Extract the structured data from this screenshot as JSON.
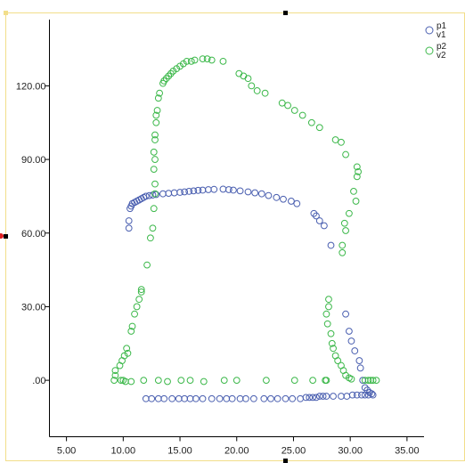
{
  "chart_data": {
    "type": "scatter",
    "title": "",
    "xlabel": "",
    "ylabel": "",
    "xlim": [
      3.5,
      36.5
    ],
    "ylim": [
      -23,
      147
    ],
    "x_ticks": [
      5,
      10,
      15,
      20,
      25,
      30,
      35
    ],
    "x_tick_labels": [
      "5.00",
      "10.00",
      "15.00",
      "20.00",
      "25.00",
      "30.00",
      "35.00"
    ],
    "y_ticks": [
      0,
      30,
      60,
      90,
      120
    ],
    "y_tick_labels": [
      ".00",
      "30.00",
      "60.00",
      "90.00",
      "120.00"
    ],
    "grid": false,
    "legend_position": "top-right",
    "marker": "open-circle",
    "series": [
      {
        "name": "p1\nv1",
        "color": "#4a5fb0",
        "points": [
          [
            10.5,
            62
          ],
          [
            10.5,
            65
          ],
          [
            10.6,
            70
          ],
          [
            10.7,
            71
          ],
          [
            10.8,
            72
          ],
          [
            11.0,
            72.5
          ],
          [
            11.2,
            73
          ],
          [
            11.4,
            73.5
          ],
          [
            11.6,
            74
          ],
          [
            11.8,
            74.5
          ],
          [
            12.0,
            75
          ],
          [
            12.3,
            75.3
          ],
          [
            12.6,
            75.5
          ],
          [
            12.9,
            75.7
          ],
          [
            13.5,
            76
          ],
          [
            14.0,
            76.2
          ],
          [
            14.5,
            76.4
          ],
          [
            15.0,
            76.6
          ],
          [
            15.4,
            76.8
          ],
          [
            15.8,
            77
          ],
          [
            16.2,
            77.2
          ],
          [
            16.6,
            77.4
          ],
          [
            17.0,
            77.5
          ],
          [
            17.5,
            77.7
          ],
          [
            18.0,
            77.8
          ],
          [
            18.8,
            77.9
          ],
          [
            19.3,
            77.7
          ],
          [
            19.7,
            77.5
          ],
          [
            20.3,
            77.2
          ],
          [
            21.0,
            76.8
          ],
          [
            21.6,
            76.4
          ],
          [
            22.2,
            76
          ],
          [
            22.8,
            75.3
          ],
          [
            23.5,
            74.5
          ],
          [
            24.1,
            73.8
          ],
          [
            24.8,
            73
          ],
          [
            25.3,
            72
          ],
          [
            26.8,
            68
          ],
          [
            27.0,
            67
          ],
          [
            27.3,
            65
          ],
          [
            27.7,
            63
          ],
          [
            28.3,
            55
          ],
          [
            29.6,
            27
          ],
          [
            29.9,
            20
          ],
          [
            30.1,
            16
          ],
          [
            30.4,
            12
          ],
          [
            30.8,
            8
          ],
          [
            30.9,
            5
          ],
          [
            31.1,
            0
          ],
          [
            31.3,
            -3
          ],
          [
            31.5,
            -4
          ],
          [
            31.7,
            -5
          ],
          [
            31.9,
            -5.5
          ],
          [
            32.0,
            -6
          ],
          [
            12.0,
            -7.5
          ],
          [
            12.5,
            -7.5
          ],
          [
            13.1,
            -7.5
          ],
          [
            13.6,
            -7.5
          ],
          [
            14.3,
            -7.5
          ],
          [
            14.9,
            -7.5
          ],
          [
            15.4,
            -7.5
          ],
          [
            15.9,
            -7.5
          ],
          [
            16.4,
            -7.5
          ],
          [
            17.0,
            -7.5
          ],
          [
            17.8,
            -7.5
          ],
          [
            18.5,
            -7.5
          ],
          [
            19.1,
            -7.5
          ],
          [
            19.6,
            -7.5
          ],
          [
            20.3,
            -7.5
          ],
          [
            20.8,
            -7.5
          ],
          [
            21.5,
            -7.5
          ],
          [
            22.4,
            -7.5
          ],
          [
            23.0,
            -7.5
          ],
          [
            23.6,
            -7.5
          ],
          [
            24.3,
            -7.5
          ],
          [
            24.9,
            -7.5
          ],
          [
            25.6,
            -7.5
          ],
          [
            26.1,
            -7
          ],
          [
            26.4,
            -7
          ],
          [
            26.7,
            -7
          ],
          [
            27.0,
            -7
          ],
          [
            27.3,
            -6.5
          ],
          [
            27.6,
            -6.5
          ],
          [
            27.9,
            -6.5
          ],
          [
            28.5,
            -6.5
          ],
          [
            29.2,
            -6.5
          ],
          [
            29.7,
            -6.5
          ],
          [
            30.2,
            -6
          ],
          [
            30.6,
            -6
          ],
          [
            31.0,
            -6
          ],
          [
            31.3,
            -6
          ],
          [
            31.6,
            -6
          ]
        ]
      },
      {
        "name": "p2\nv2",
        "color": "#3cb84a",
        "points": [
          [
            9.2,
            0
          ],
          [
            9.3,
            2
          ],
          [
            9.3,
            4
          ],
          [
            9.7,
            6
          ],
          [
            9.9,
            8
          ],
          [
            10.1,
            10
          ],
          [
            10.3,
            13
          ],
          [
            10.4,
            11
          ],
          [
            10.7,
            20
          ],
          [
            10.8,
            22
          ],
          [
            11.0,
            27
          ],
          [
            11.2,
            30
          ],
          [
            11.4,
            33
          ],
          [
            11.6,
            36
          ],
          [
            11.6,
            37
          ],
          [
            12.1,
            47
          ],
          [
            12.4,
            58
          ],
          [
            12.6,
            62
          ],
          [
            12.7,
            70
          ],
          [
            12.8,
            76
          ],
          [
            12.8,
            80
          ],
          [
            12.7,
            86
          ],
          [
            12.8,
            90
          ],
          [
            12.7,
            93
          ],
          [
            12.8,
            98
          ],
          [
            12.8,
            100
          ],
          [
            12.9,
            105
          ],
          [
            12.9,
            108
          ],
          [
            13.0,
            110
          ],
          [
            13.1,
            115
          ],
          [
            13.2,
            117
          ],
          [
            13.5,
            121
          ],
          [
            13.6,
            122
          ],
          [
            13.8,
            123
          ],
          [
            14.0,
            124
          ],
          [
            14.2,
            125
          ],
          [
            14.4,
            126
          ],
          [
            14.7,
            127
          ],
          [
            15.0,
            128
          ],
          [
            15.3,
            129
          ],
          [
            15.6,
            130
          ],
          [
            16.0,
            130
          ],
          [
            16.3,
            130.5
          ],
          [
            17.0,
            131
          ],
          [
            17.4,
            131
          ],
          [
            17.8,
            130.5
          ],
          [
            18.8,
            130
          ],
          [
            20.2,
            125
          ],
          [
            20.6,
            124
          ],
          [
            21.0,
            123
          ],
          [
            21.3,
            120
          ],
          [
            21.8,
            118
          ],
          [
            22.5,
            117
          ],
          [
            24.0,
            113
          ],
          [
            24.5,
            112
          ],
          [
            25.1,
            110
          ],
          [
            25.8,
            108
          ],
          [
            26.6,
            105
          ],
          [
            27.3,
            103
          ],
          [
            28.7,
            98
          ],
          [
            29.2,
            97
          ],
          [
            29.6,
            92
          ],
          [
            30.6,
            87
          ],
          [
            30.7,
            85
          ],
          [
            30.6,
            83
          ],
          [
            30.3,
            77
          ],
          [
            30.5,
            73
          ],
          [
            29.5,
            64
          ],
          [
            29.9,
            68
          ],
          [
            29.6,
            61
          ],
          [
            29.3,
            55
          ],
          [
            29.3,
            52
          ],
          [
            28.1,
            33
          ],
          [
            28.1,
            30
          ],
          [
            27.9,
            27
          ],
          [
            28.0,
            23
          ],
          [
            28.3,
            19
          ],
          [
            28.4,
            15
          ],
          [
            28.5,
            13
          ],
          [
            28.7,
            10
          ],
          [
            28.9,
            8
          ],
          [
            29.2,
            6
          ],
          [
            29.4,
            4
          ],
          [
            29.6,
            2
          ],
          [
            29.9,
            1
          ],
          [
            30.1,
            0.5
          ],
          [
            31.3,
            0
          ],
          [
            31.6,
            0
          ],
          [
            31.8,
            0
          ],
          [
            32.0,
            0
          ],
          [
            32.3,
            0
          ],
          [
            9.8,
            0
          ],
          [
            10.0,
            0
          ],
          [
            10.2,
            -0.5
          ],
          [
            10.7,
            -0.5
          ],
          [
            11.8,
            0
          ],
          [
            13.1,
            0
          ],
          [
            13.9,
            -0.5
          ],
          [
            15.1,
            0
          ],
          [
            15.9,
            0
          ],
          [
            17.1,
            -0.5
          ],
          [
            18.9,
            0
          ],
          [
            20.0,
            0
          ],
          [
            22.6,
            0
          ],
          [
            25.1,
            0
          ],
          [
            26.7,
            0
          ],
          [
            27.8,
            0
          ],
          [
            27.9,
            0
          ]
        ]
      }
    ]
  },
  "legend": {
    "items": [
      {
        "line1": "p1",
        "line2": "v1"
      },
      {
        "line1": "p2",
        "line2": "v2"
      }
    ]
  }
}
